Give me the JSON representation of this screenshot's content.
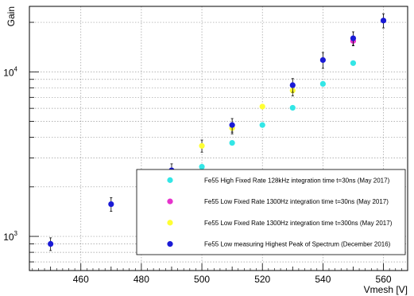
{
  "chart_data": {
    "type": "scatter",
    "title": "",
    "xlabel": "Vmesh [V]",
    "ylabel": "Gain",
    "xlim": [
      443,
      568
    ],
    "ylim": [
      620,
      25000
    ],
    "yscale": "log",
    "grid": true,
    "legend_position": "bottom-right",
    "x_ticks": [
      "460",
      "480",
      "500",
      "520",
      "540",
      "560"
    ],
    "y_ticks": [
      "10^3",
      "10^4"
    ],
    "series": [
      {
        "name": "Fe55 High Fixed Rate 128kHz integration time t=30ns (May 2017)",
        "color": "#33e6e6",
        "points": [
          [
            500,
            2650
          ],
          [
            510,
            3700
          ],
          [
            520,
            4750
          ],
          [
            530,
            6050
          ],
          [
            540,
            8450
          ],
          [
            550,
            11300
          ]
        ],
        "errors": [
          0,
          0,
          0,
          0,
          0,
          0
        ]
      },
      {
        "name": "Fe55 Low Fixed Rate 1300Hz integration time t=30ns (May 2017)",
        "color": "#e633cc",
        "points": [
          [
            550,
            15400
          ]
        ],
        "errors": [
          1000
        ]
      },
      {
        "name": "Fe55 Low Fixed Rate 1300Hz integration time t=300ns (May 2017)",
        "color": "#ffff33",
        "points": [
          [
            500,
            3550
          ],
          [
            510,
            4550
          ],
          [
            520,
            6150
          ],
          [
            530,
            7700
          ]
        ],
        "errors": [
          300,
          350,
          0,
          550
        ]
      },
      {
        "name": "Fe55 Low measuring Highest Peak of Spectrum (December 2016)",
        "color": "#1a1ad6",
        "points": [
          [
            450,
            900
          ],
          [
            470,
            1570
          ],
          [
            490,
            2520
          ],
          [
            510,
            4750
          ],
          [
            530,
            8300
          ],
          [
            540,
            11800
          ],
          [
            550,
            16000
          ],
          [
            560,
            20500
          ]
        ],
        "errors": [
          80,
          150,
          240,
          450,
          800,
          1300,
          1500,
          2000
        ]
      }
    ]
  }
}
